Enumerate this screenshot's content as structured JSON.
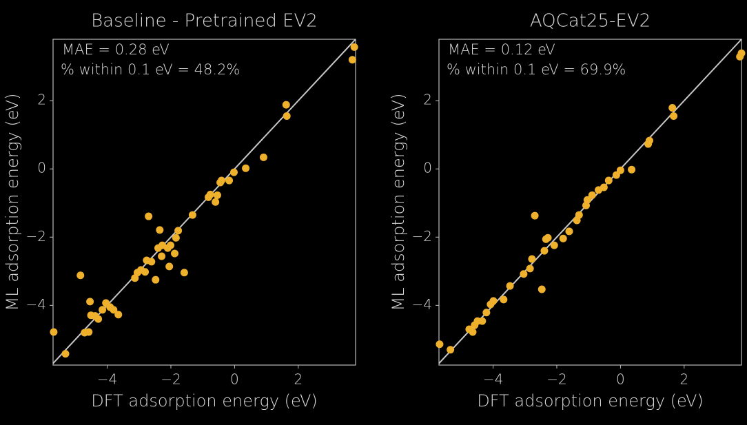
{
  "chart_data": [
    {
      "type": "scatter",
      "title": "Baseline - Pretrained EV2",
      "xlabel": "DFT adsorption energy (eV)",
      "ylabel": "ML adsorption energy (eV)",
      "annotations": [
        "MAE = 0.28 eV",
        "% within 0.1 eV = 48.2%"
      ],
      "color": "#efb12c",
      "xlim": [
        -5.7,
        3.8
      ],
      "ylim": [
        -5.75,
        3.8
      ],
      "xticks": [
        {
          "value": -4,
          "label": "−4"
        },
        {
          "value": -2,
          "label": "−2"
        },
        0,
        2
      ],
      "yticks": [
        {
          "value": -4,
          "label": "−4"
        },
        {
          "value": -2,
          "label": "−2"
        },
        0,
        2
      ],
      "x": [
        3.76,
        3.7,
        1.62,
        1.64,
        0.91,
        0.35,
        -0.02,
        -0.17,
        -0.41,
        -0.45,
        -0.54,
        -0.6,
        -0.76,
        -0.82,
        -1.32,
        -1.77,
        -1.84,
        -1.88,
        -1.58,
        -2.01,
        -2.1,
        -2.05,
        -2.35,
        -2.7,
        -2.27,
        -2.29,
        -2.4,
        -2.48,
        -2.61,
        -2.76,
        -2.81,
        -2.94,
        -3.05,
        -3.13,
        -3.65,
        -3.8,
        -3.91,
        -4.04,
        -4.15,
        -4.28,
        -4.38,
        -4.54,
        -4.51,
        -4.84,
        -4.58,
        -4.71,
        -5.31,
        -5.68
      ],
      "values": [
        3.57,
        3.2,
        1.88,
        1.55,
        0.34,
        0.02,
        -0.1,
        -0.34,
        -0.34,
        -0.4,
        -0.77,
        -0.97,
        -0.75,
        -0.83,
        -1.35,
        -1.81,
        -2.02,
        -2.48,
        -3.04,
        -2.24,
        -2.32,
        -2.86,
        -1.79,
        -1.39,
        -2.24,
        -2.56,
        -2.32,
        -3.25,
        -2.72,
        -2.68,
        -3.02,
        -2.96,
        -3.04,
        -3.2,
        -4.27,
        -4.13,
        -4.05,
        -3.93,
        -4.13,
        -4.4,
        -4.31,
        -3.89,
        -4.29,
        -3.12,
        -4.78,
        -4.8,
        -5.42,
        -4.78
      ]
    },
    {
      "type": "scatter",
      "title": "AQCat25-EV2",
      "xlabel": "DFT adsorption energy (eV)",
      "ylabel": "ML adsorption energy (eV)",
      "annotations": [
        "MAE = 0.12 eV",
        "% within 0.1 eV = 69.9%"
      ],
      "color": "#efb12c",
      "xlim": [
        -5.7,
        3.8
      ],
      "ylim": [
        -5.75,
        3.8
      ],
      "xticks": [
        {
          "value": -4,
          "label": "−4"
        },
        {
          "value": -2,
          "label": "−2"
        },
        0,
        2
      ],
      "yticks": [
        {
          "value": -4,
          "label": "−4"
        },
        {
          "value": -2,
          "label": "−2"
        },
        0,
        2
      ],
      "x": [
        3.8,
        3.75,
        1.63,
        1.67,
        0.91,
        0.87,
        0.35,
        0,
        -0.13,
        -0.37,
        -0.52,
        -0.69,
        -0.89,
        -1.04,
        -1.08,
        -1.3,
        -1.37,
        -1.61,
        -1.8,
        -2.08,
        -2.34,
        -2.28,
        -2.39,
        -2.69,
        -2.47,
        -2.78,
        -2.84,
        -3.04,
        -3.47,
        -3.67,
        -3.99,
        -4.08,
        -4.21,
        -4.34,
        -4.49,
        -4.58,
        -4.64,
        -4.75,
        -5.34,
        -5.68
      ],
      "values": [
        3.39,
        3.29,
        1.79,
        1.55,
        0.83,
        0.73,
        -0.02,
        -0.04,
        -0.18,
        -0.34,
        -0.54,
        -0.62,
        -0.77,
        -0.91,
        -1.07,
        -1.35,
        -1.51,
        -1.83,
        -2.04,
        -2.24,
        -2.06,
        -2.02,
        -2.4,
        -1.37,
        -3.53,
        -2.64,
        -2.92,
        -3.08,
        -3.43,
        -3.83,
        -3.87,
        -3.97,
        -4.21,
        -4.46,
        -4.46,
        -4.58,
        -4.78,
        -4.7,
        -5.3,
        -5.14
      ]
    }
  ]
}
